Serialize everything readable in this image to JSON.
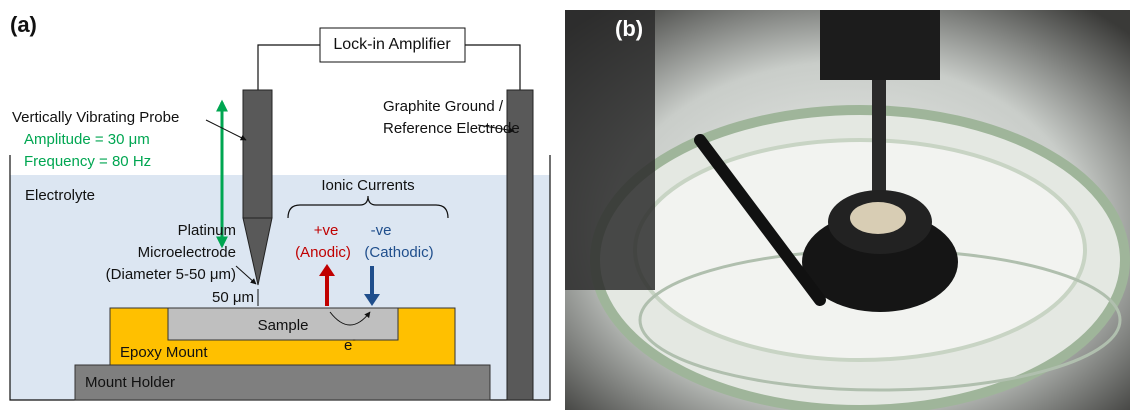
{
  "panel_a": {
    "label": "(a)",
    "lock_in": "Lock-in Amplifier",
    "probe_label": "Vertically Vibrating Probe",
    "amplitude": "Amplitude = 30 μm",
    "frequency": "Frequency = 80 Hz",
    "ground_lines": [
      "Graphite Ground /",
      "Reference Electrode"
    ],
    "electrolyte": "Electrolyte",
    "ionic_currents": "Ionic Currents",
    "anodic": {
      "sign": "+ve",
      "label": "(Anodic)"
    },
    "cathodic": {
      "sign": "-ve",
      "label": "(Cathodic)"
    },
    "microelectrode_lines": [
      "Platinum",
      "Microelectrode",
      "(Diameter 5-50 μm)"
    ],
    "gap": "50 μm",
    "sample": "Sample",
    "electron": {
      "symbol": "e",
      "charge": "-"
    },
    "epoxy": "Epoxy Mount",
    "holder": "Mount Holder"
  },
  "panel_b": {
    "label": "(b)"
  }
}
